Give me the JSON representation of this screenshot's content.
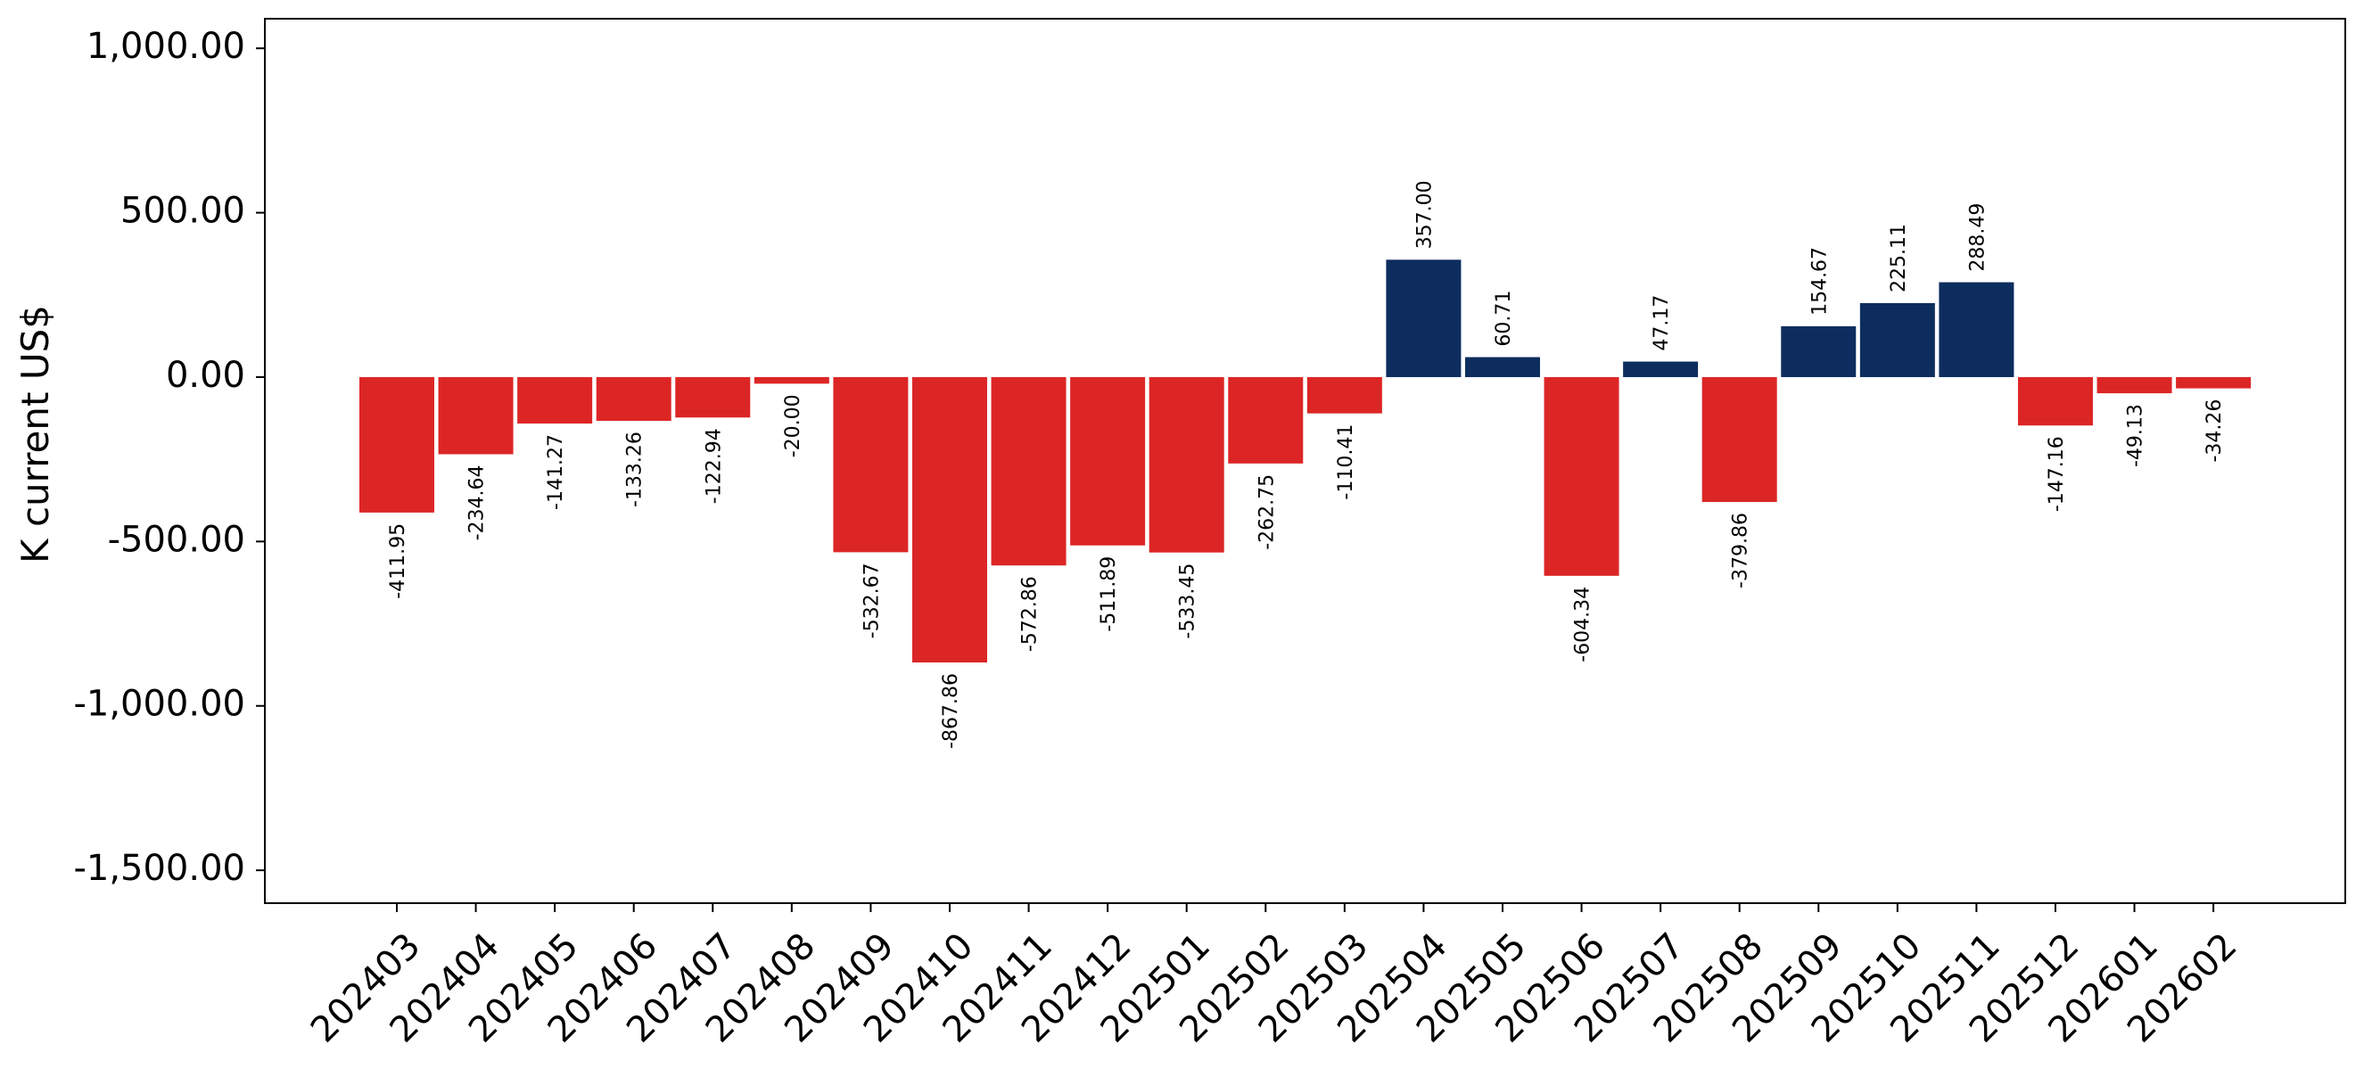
{
  "chart_data": {
    "type": "bar",
    "title": "",
    "xlabel": "",
    "ylabel": "K current US$",
    "categories": [
      "202403",
      "202404",
      "202405",
      "202406",
      "202407",
      "202408",
      "202409",
      "202410",
      "202411",
      "202412",
      "202501",
      "202502",
      "202503",
      "202504",
      "202505",
      "202506",
      "202507",
      "202508",
      "202509",
      "202510",
      "202511",
      "202512",
      "202601",
      "202602"
    ],
    "values": [
      -411.95,
      -234.64,
      -141.27,
      -133.26,
      -122.94,
      -20.0,
      -532.67,
      -867.86,
      -572.86,
      -511.89,
      -533.45,
      -262.75,
      -110.41,
      357.0,
      60.71,
      -604.34,
      47.17,
      -379.86,
      154.67,
      225.11,
      288.49,
      -147.16,
      -49.13,
      -34.26
    ],
    "value_labels": [
      "-411.95",
      "-234.64",
      "-141.27",
      "-133.26",
      "-122.94",
      "-20.00",
      "-532.67",
      "-867.86",
      "-572.86",
      "-511.89",
      "-533.45",
      "-262.75",
      "-110.41",
      "357.00",
      "60.71",
      "-604.34",
      "47.17",
      "-379.86",
      "154.67",
      "225.11",
      "288.49",
      "-147.16",
      "-49.13",
      "-34.26"
    ],
    "ylim": [
      -1600,
      1090
    ],
    "yticks": [
      1000,
      500,
      0,
      -500,
      -1000,
      -1500
    ],
    "ytick_labels": [
      "1,000.00",
      "500.00",
      "0.00",
      "-500.00",
      "-1,000.00",
      "-1,500.00"
    ],
    "grid": false,
    "legend": "none",
    "colors": {
      "positive": "#0d2d5e",
      "negative": "#dc2626",
      "axis": "#000000"
    }
  }
}
